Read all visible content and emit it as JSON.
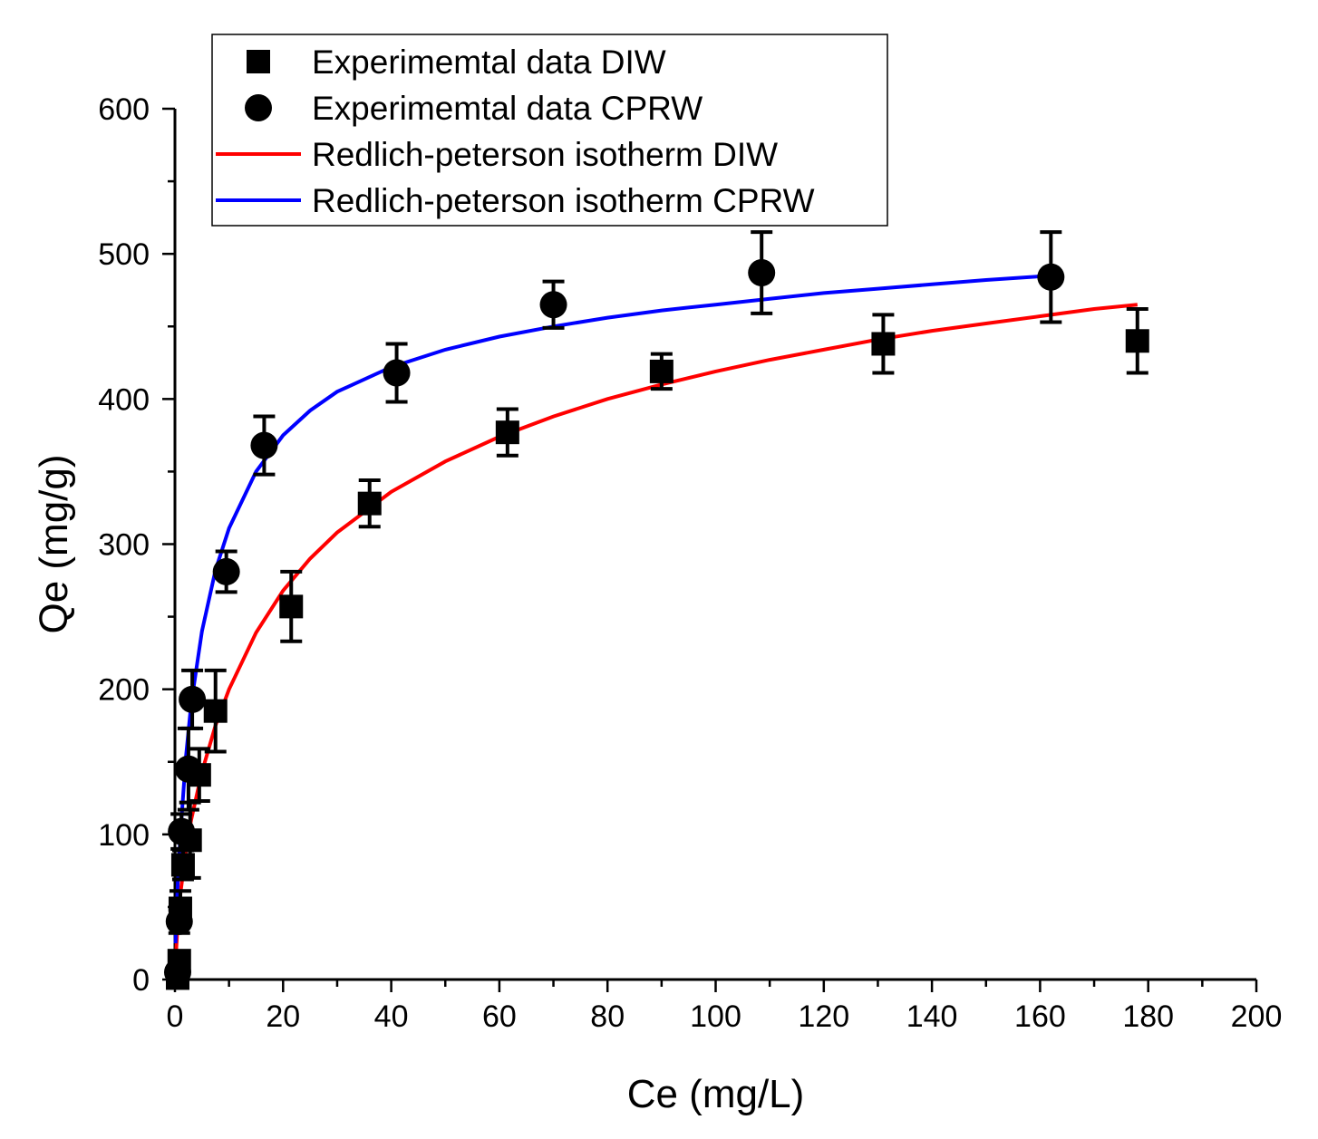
{
  "chart_data": {
    "type": "scatter",
    "xlabel": "Ce (mg/L)",
    "ylabel": "Qe (mg/g)",
    "xlim": [
      0,
      200
    ],
    "ylim": [
      0,
      600
    ],
    "x_ticks": [
      "0",
      "20",
      "40",
      "60",
      "80",
      "100",
      "120",
      "140",
      "160",
      "180",
      "200"
    ],
    "y_ticks": [
      "0",
      "100",
      "200",
      "300",
      "400",
      "500",
      "600"
    ],
    "grid": false,
    "legend_position": "top-left",
    "series": [
      {
        "name": "Experimemtal data DIW",
        "kind": "points",
        "marker": "square",
        "color": "#000000",
        "points": [
          {
            "x": 0.5,
            "y": 1,
            "err": 3
          },
          {
            "x": 0.8,
            "y": 13,
            "err": 5
          },
          {
            "x": 1.0,
            "y": 49,
            "err": 12
          },
          {
            "x": 1.5,
            "y": 79,
            "err": 10
          },
          {
            "x": 2.8,
            "y": 96,
            "err": 26
          },
          {
            "x": 4.5,
            "y": 141,
            "err": 18
          },
          {
            "x": 7.5,
            "y": 185,
            "err": 28
          },
          {
            "x": 21.5,
            "y": 257,
            "err": 24
          },
          {
            "x": 36,
            "y": 328,
            "err": 16
          },
          {
            "x": 61.5,
            "y": 377,
            "err": 16
          },
          {
            "x": 90,
            "y": 419,
            "err": 12
          },
          {
            "x": 131,
            "y": 438,
            "err": 20
          },
          {
            "x": 178,
            "y": 440,
            "err": 22
          }
        ]
      },
      {
        "name": "Experimemtal data CPRW",
        "kind": "points",
        "marker": "circle",
        "color": "#000000",
        "points": [
          {
            "x": 0.5,
            "y": 5,
            "err": 4
          },
          {
            "x": 0.8,
            "y": 40,
            "err": 8
          },
          {
            "x": 1.2,
            "y": 102,
            "err": 12
          },
          {
            "x": 2.5,
            "y": 145,
            "err": 28
          },
          {
            "x": 3.2,
            "y": 193,
            "err": 20
          },
          {
            "x": 9.5,
            "y": 281,
            "err": 14
          },
          {
            "x": 16.5,
            "y": 368,
            "err": 20
          },
          {
            "x": 41,
            "y": 418,
            "err": 20
          },
          {
            "x": 70,
            "y": 465,
            "err": 16
          },
          {
            "x": 108.5,
            "y": 487,
            "err": 28
          },
          {
            "x": 162,
            "y": 484,
            "err": 31
          }
        ]
      },
      {
        "name": "Redlich-peterson isotherm DIW",
        "kind": "line",
        "color": "#ff0000",
        "x": [
          0.1,
          0.5,
          1,
          2,
          3,
          5,
          7.5,
          10,
          15,
          20,
          25,
          30,
          40,
          50,
          60,
          70,
          80,
          90,
          100,
          110,
          120,
          130,
          140,
          150,
          160,
          170,
          178
        ],
        "y": [
          12,
          38,
          59,
          88,
          110,
          143,
          175,
          200,
          239,
          268,
          290,
          308,
          336,
          357,
          374,
          388,
          400,
          410,
          419,
          427,
          434,
          441,
          447,
          452,
          457,
          462,
          465
        ]
      },
      {
        "name": "Redlich-peterson isotherm CPRW",
        "kind": "line",
        "color": "#0000ff",
        "x": [
          0.1,
          0.5,
          1,
          2,
          3,
          5,
          7.5,
          10,
          15,
          20,
          25,
          30,
          40,
          50,
          60,
          70,
          80,
          90,
          100,
          110,
          120,
          130,
          140,
          150,
          162
        ],
        "y": [
          25,
          65,
          100,
          152,
          190,
          240,
          282,
          311,
          350,
          375,
          392,
          405,
          422,
          434,
          443,
          450,
          456,
          461,
          465,
          469,
          473,
          476,
          479,
          482,
          485
        ]
      }
    ]
  }
}
